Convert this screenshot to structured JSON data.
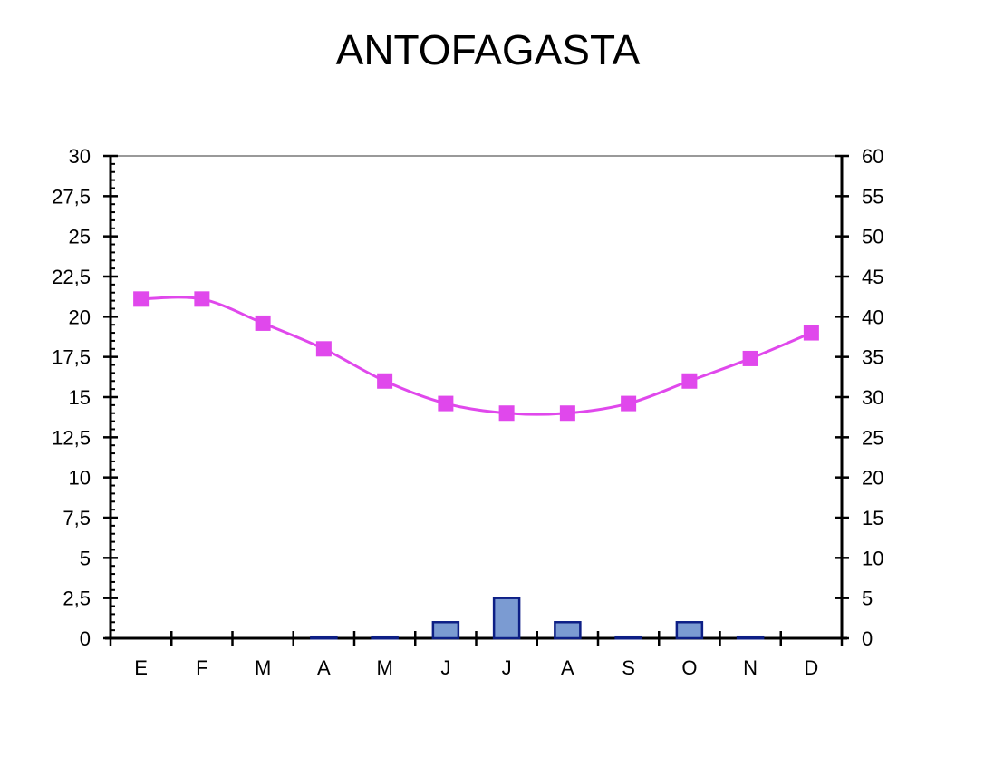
{
  "chart_data": {
    "type": "bar",
    "title": "ANTOFAGASTA",
    "categories": [
      "E",
      "F",
      "M",
      "A",
      "M",
      "J",
      "J",
      "A",
      "S",
      "O",
      "N",
      "D"
    ],
    "left_axis": {
      "ylim": [
        0,
        30
      ],
      "ticks": [
        "0",
        "2,5",
        "5",
        "7,5",
        "10",
        "12,5",
        "15",
        "17,5",
        "20",
        "22,5",
        "25",
        "27,5",
        "30"
      ]
    },
    "right_axis": {
      "ylim": [
        0,
        60
      ],
      "ticks": [
        "0",
        "5",
        "10",
        "15",
        "20",
        "25",
        "30",
        "35",
        "40",
        "45",
        "50",
        "55",
        "60"
      ]
    },
    "series": [
      {
        "type": "bar",
        "axis": "right",
        "values": [
          0,
          0,
          0,
          0.2,
          0.2,
          2,
          5,
          2,
          0.2,
          2,
          0.2,
          0
        ]
      },
      {
        "type": "line",
        "axis": "left",
        "values": [
          21.1,
          21.1,
          19.6,
          18,
          16,
          14.6,
          14,
          14,
          14.6,
          16,
          17.4,
          19
        ]
      }
    ],
    "colors": {
      "bar_fill": "#7b9bd2",
      "bar_stroke": "#0d1f86",
      "line": "#e048ec",
      "marker": "#e048ec",
      "top_border": "#999999"
    },
    "grid": false,
    "legend": "none"
  }
}
